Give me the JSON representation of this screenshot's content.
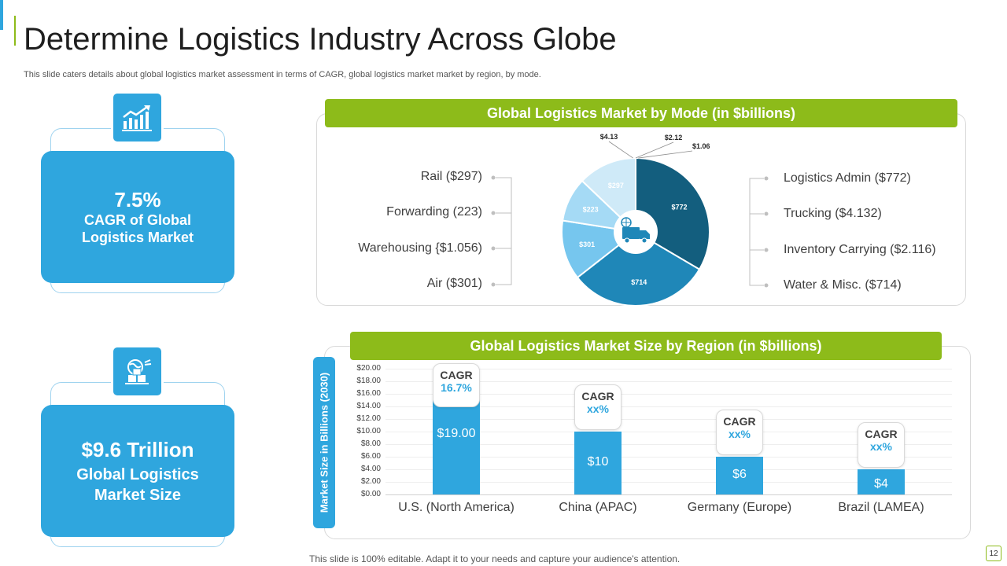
{
  "title": "Determine Logistics Industry Across Globe",
  "subtitle": "This slide caters details about global logistics market assessment in terms of CAGR,  global logistics market market by region, by mode.",
  "kpis": [
    {
      "value": "7.5%",
      "label_line1": "CAGR of Global",
      "label_line2": "Logistics Market",
      "icon": "growth-chart-icon"
    },
    {
      "value": "$9.6 Trillion",
      "label_line1": "Global Logistics",
      "label_line2": "Market Size",
      "icon": "globe-packages-icon"
    }
  ],
  "mode_panel": {
    "header": "Global Logistics Market by Mode (in $billions)",
    "left_legend": [
      "Rail ($297)",
      "Forwarding (223)",
      "Warehousing {$1.056)",
      "Air ($301)"
    ],
    "right_legend": [
      "Logistics Admin ($772)",
      "Trucking ($4.132)",
      "Inventory  Carrying ($2.116)",
      "Water & Misc. ($714)"
    ],
    "center_icon": "delivery-truck-icon"
  },
  "region_panel": {
    "header": "Global Logistics Market Size by Region  (in $billions)",
    "ylabel": "Market Size in Billions (2030)"
  },
  "chart_data": [
    {
      "type": "pie",
      "title": "Global Logistics Market by Mode (in $billions)",
      "slices": [
        {
          "label": "$772",
          "value": 772,
          "color": "#135e7e"
        },
        {
          "label": "$714",
          "value": 714,
          "color": "#1f87b8"
        },
        {
          "label": "$301",
          "value": 301,
          "color": "#76c6ee"
        },
        {
          "label": "$223",
          "value": 223,
          "color": "#a5daf5"
        },
        {
          "label": "$297",
          "value": 297,
          "color": "#cfeaf8"
        },
        {
          "label": "$4.13",
          "value": 4.13,
          "color": "#cfeaf8"
        },
        {
          "label": "$2.12",
          "value": 2.12,
          "color": "#cfeaf8"
        },
        {
          "label": "$1.06",
          "value": 1.06,
          "color": "#cfeaf8"
        }
      ]
    },
    {
      "type": "bar",
      "title": "Global Logistics Market Size by Region  (in $billions)",
      "ylabel": "Market Size in Billions (2030)",
      "categories": [
        "U.S. (North America)",
        "China (APAC)",
        "Germany (Europe)",
        "Brazil (LAMEA)"
      ],
      "values": [
        19.0,
        10,
        6,
        4
      ],
      "value_labels": [
        "$19.00",
        "$10",
        "$6",
        "$4"
      ],
      "ylim": [
        0,
        20
      ],
      "yticks": [
        "$0.00",
        "$2.00",
        "$4.00",
        "$6.00",
        "$8.00",
        "$10.00",
        "$12.00",
        "$14.00",
        "$16.00",
        "$18.00",
        "$20.00"
      ],
      "cagr": [
        {
          "title": "CAGR",
          "value": "16.7%"
        },
        {
          "title": "CAGR",
          "value": "xx%"
        },
        {
          "title": "CAGR",
          "value": "xx%"
        },
        {
          "title": "CAGR",
          "value": "xx%"
        }
      ],
      "bar_color": "#2fa6de"
    }
  ],
  "colors": {
    "accent_blue": "#2fa6de",
    "accent_green": "#8dbb1a"
  },
  "footer": "This slide is 100% editable. Adapt it to your needs and capture your audience's attention.",
  "page_number": "12"
}
